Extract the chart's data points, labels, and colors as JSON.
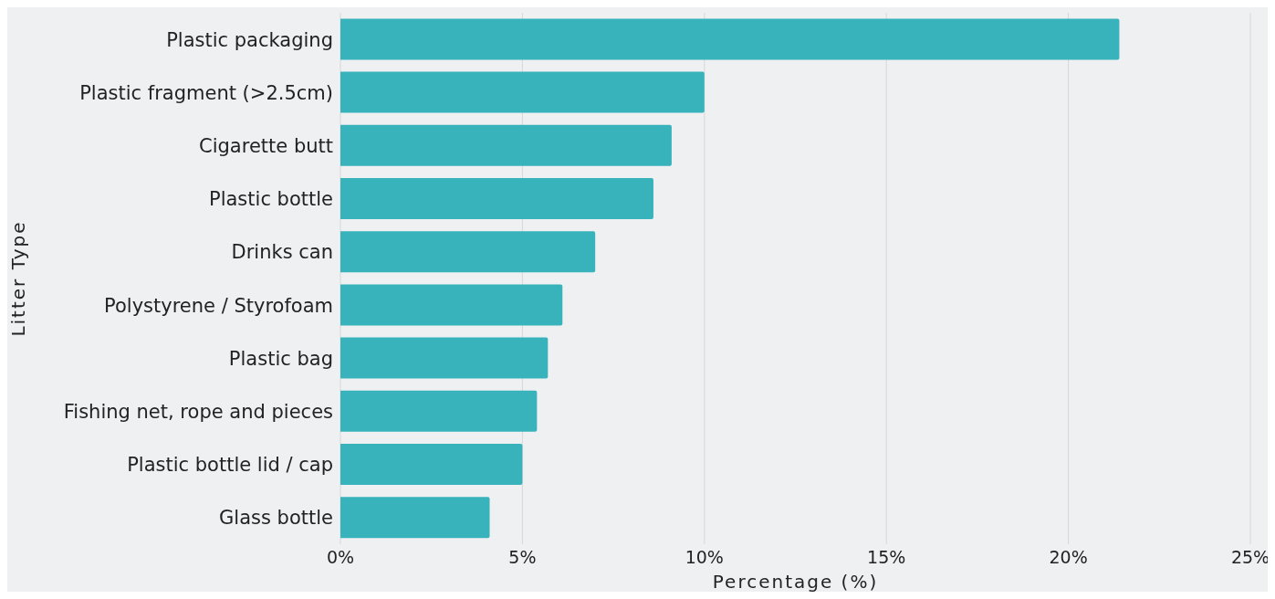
{
  "chart_data": {
    "type": "bar",
    "orientation": "horizontal",
    "xlabel": "Percentage (%)",
    "ylabel": "Litter Type",
    "categories": [
      "Plastic packaging",
      "Plastic fragment (>2.5cm)",
      "Cigarette butt",
      "Plastic bottle",
      "Drinks can",
      "Polystyrene / Styrofoam",
      "Plastic bag",
      "Fishing net, rope and pieces",
      "Plastic bottle lid / cap",
      "Glass bottle"
    ],
    "values": [
      21.4,
      10.0,
      9.1,
      8.6,
      7.0,
      6.1,
      5.7,
      5.4,
      5.0,
      4.1
    ],
    "color": "#38b3bb",
    "xlim": [
      0,
      25
    ],
    "xticks": [
      {
        "value": 0,
        "label": "0%"
      },
      {
        "value": 5,
        "label": "5%"
      },
      {
        "value": 10,
        "label": "10%"
      },
      {
        "value": 15,
        "label": "15%"
      },
      {
        "value": 20,
        "label": "20%"
      },
      {
        "value": 25,
        "label": "25%"
      }
    ],
    "grid": "x",
    "legend": false
  }
}
